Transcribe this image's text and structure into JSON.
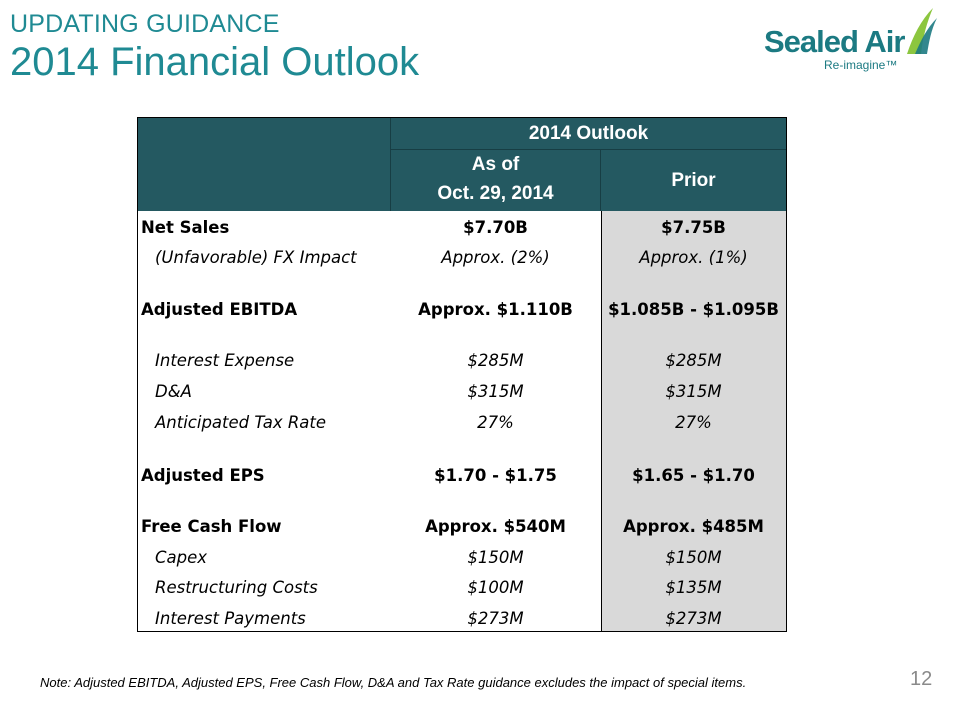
{
  "header": {
    "kicker": "UPDATING GUIDANCE",
    "title": "2014 Financial Outlook"
  },
  "logo": {
    "wordmark": "Sealed Air",
    "tagline": "Re-imagine™"
  },
  "table": {
    "group_header": "2014 Outlook",
    "col_asof_line1": "As of",
    "col_asof_line2": "Oct. 29, 2014",
    "col_prior": "Prior",
    "rows": [
      {
        "label": "Net Sales",
        "asof": "$7.70B",
        "prior": "$7.75B"
      },
      {
        "label": "(Unfavorable) FX Impact",
        "asof": "Approx. (2%)",
        "prior": "Approx. (1%)"
      },
      {
        "label": "Adjusted EBITDA",
        "asof": "Approx. $1.110B",
        "prior": "$1.085B - $1.095B"
      },
      {
        "label": "Interest Expense",
        "asof": "$285M",
        "prior": "$285M"
      },
      {
        "label": "D&A",
        "asof": "$315M",
        "prior": "$315M"
      },
      {
        "label": "Anticipated Tax Rate",
        "asof": "27%",
        "prior": "27%"
      },
      {
        "label": "Adjusted EPS",
        "asof": "$1.70 - $1.75",
        "prior": "$1.65 - $1.70"
      },
      {
        "label": "Free Cash Flow",
        "asof": "Approx. $540M",
        "prior": "Approx. $485M"
      },
      {
        "label": "Capex",
        "asof": "$150M",
        "prior": "$150M"
      },
      {
        "label": "Restructuring Costs",
        "asof": "$100M",
        "prior": "$135M"
      },
      {
        "label": "Interest Payments",
        "asof": "$273M",
        "prior": "$273M"
      }
    ]
  },
  "footer": {
    "note": "Note:  Adjusted EBITDA, Adjusted EPS, Free Cash Flow,  D&A and Tax Rate guidance excludes the impact of special items.",
    "page_number": "12"
  },
  "colors": {
    "title": "#1f8a93",
    "table_header_bg": "#245961",
    "prior_col_bg": "#d9d9d9",
    "logo_teal": "#1c7a82",
    "logo_green": "#8cc63f"
  }
}
